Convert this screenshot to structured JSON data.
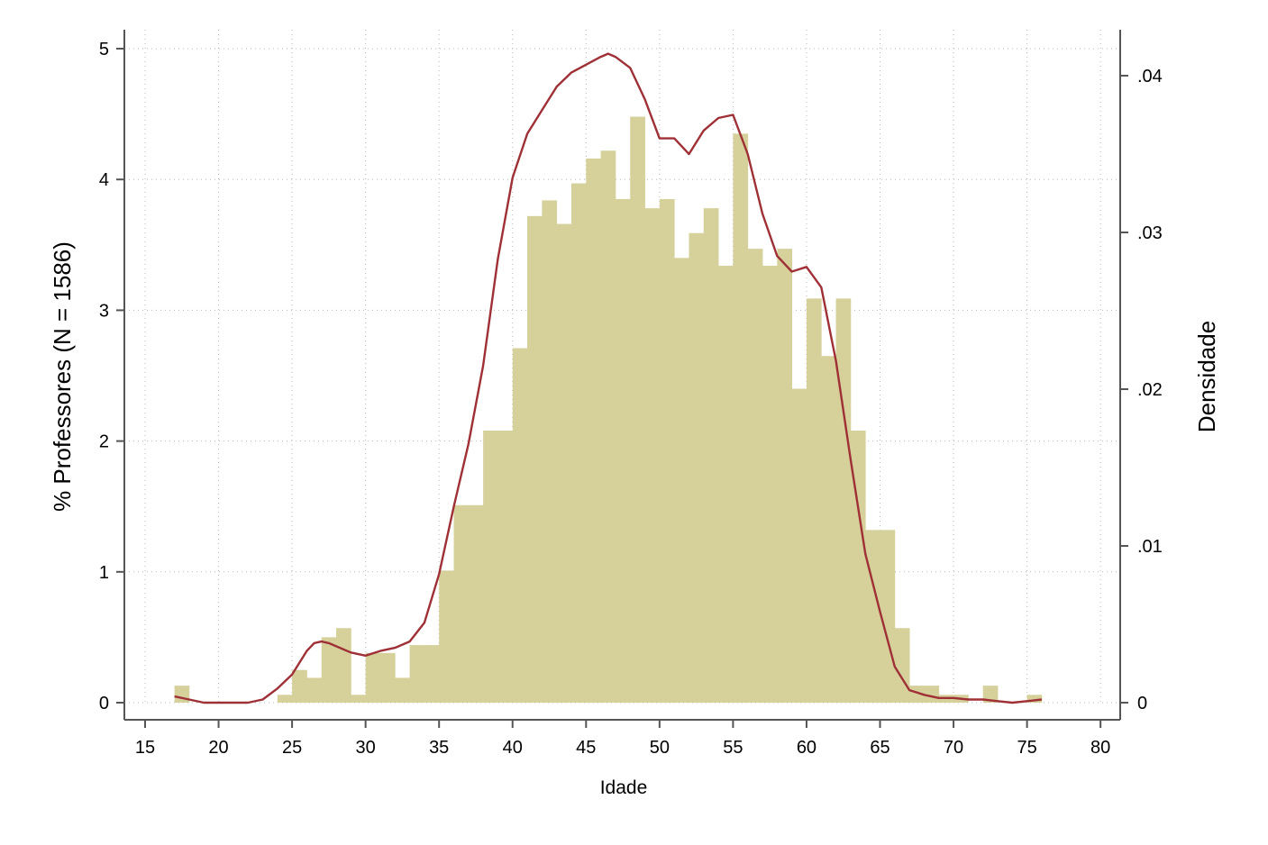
{
  "chart_data": {
    "type": "bar",
    "xlabel": "Idade",
    "ylabel": "% Professores (N = 1586)",
    "y2label": "Densidade",
    "xlim": [
      15,
      80
    ],
    "ylim": [
      0,
      5
    ],
    "y2lim": [
      0,
      0.04
    ],
    "xticks": [
      "15",
      "20",
      "25",
      "30",
      "35",
      "40",
      "45",
      "50",
      "55",
      "60",
      "65",
      "70",
      "75",
      "80"
    ],
    "yticks": [
      "0",
      "1",
      "2",
      "3",
      "4",
      "5"
    ],
    "y2ticks": [
      "0",
      ".01",
      ".02",
      ".03",
      ".04"
    ],
    "grid": true,
    "colors": {
      "bars": "#d6d09b",
      "density": "#9e3036"
    },
    "series": [
      {
        "type": "bar",
        "bin_width": 1,
        "x": [
          17,
          24,
          25,
          26,
          27,
          28,
          29,
          30,
          31,
          32,
          33,
          34,
          35,
          36,
          37,
          38,
          39,
          40,
          41,
          42,
          43,
          44,
          45,
          46,
          47,
          48,
          49,
          50,
          51,
          52,
          53,
          54,
          55,
          56,
          57,
          58,
          59,
          60,
          61,
          62,
          63,
          64,
          65,
          66,
          67,
          68,
          69,
          70,
          72,
          75
        ],
        "values": [
          0.13,
          0.06,
          0.25,
          0.19,
          0.5,
          0.57,
          0.06,
          0.38,
          0.38,
          0.19,
          0.44,
          0.44,
          1.01,
          1.51,
          1.51,
          2.08,
          2.08,
          2.71,
          3.72,
          3.84,
          3.66,
          3.97,
          4.16,
          4.22,
          3.85,
          4.48,
          3.78,
          3.85,
          3.4,
          3.59,
          3.78,
          3.34,
          4.35,
          3.47,
          3.34,
          3.47,
          2.4,
          3.09,
          2.65,
          3.09,
          2.08,
          1.32,
          1.32,
          0.57,
          0.13,
          0.13,
          0.06,
          0.06,
          0.13,
          0.06
        ]
      },
      {
        "type": "line",
        "x": [
          17,
          18,
          19,
          20,
          21,
          22,
          23,
          24,
          25,
          26,
          26.5,
          27,
          27.5,
          28,
          29,
          30,
          31,
          32,
          33,
          34,
          35,
          36,
          37,
          38,
          39,
          40,
          41,
          42,
          43,
          44,
          45,
          46,
          46.5,
          47,
          48,
          49,
          50,
          51,
          52,
          53,
          54,
          55,
          56,
          57,
          58,
          59,
          60,
          61,
          62,
          63,
          64,
          65,
          66,
          67,
          68,
          69,
          70,
          71,
          72,
          73,
          74,
          75,
          76
        ],
        "values": [
          0.0004,
          0.0002,
          0,
          0,
          0,
          0,
          0.0002,
          0.0009,
          0.0018,
          0.0033,
          0.0038,
          0.0039,
          0.0038,
          0.0036,
          0.0032,
          0.003,
          0.0033,
          0.0035,
          0.0039,
          0.0051,
          0.0082,
          0.0125,
          0.0165,
          0.0215,
          0.0283,
          0.0335,
          0.0363,
          0.0378,
          0.0393,
          0.0402,
          0.0407,
          0.0412,
          0.0414,
          0.0412,
          0.0405,
          0.0385,
          0.036,
          0.036,
          0.035,
          0.0365,
          0.0373,
          0.0375,
          0.035,
          0.0312,
          0.0285,
          0.0275,
          0.0278,
          0.0265,
          0.0218,
          0.0155,
          0.0095,
          0.0058,
          0.0023,
          0.0008,
          0.0005,
          0.0003,
          0.0003,
          0.0002,
          0.0002,
          0.0001,
          0,
          0.0001,
          0.0002
        ]
      }
    ]
  }
}
